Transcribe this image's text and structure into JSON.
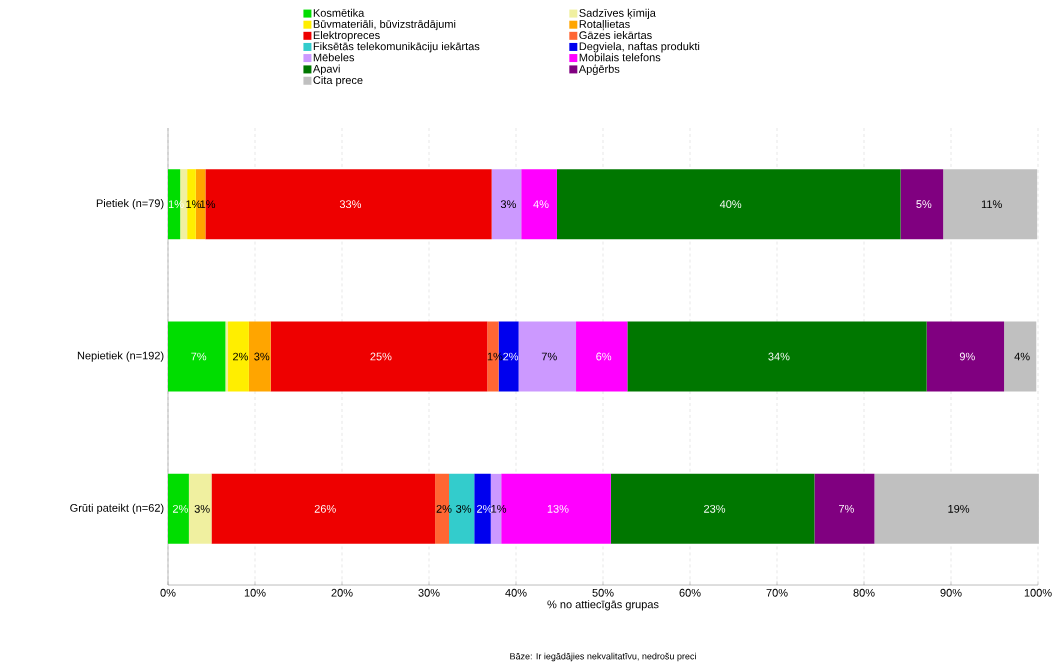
{
  "chart_data": {
    "type": "bar",
    "orientation": "horizontal",
    "stacked": true,
    "categories": [
      "Pietiek (n=79)",
      "Nepietiek (n=192)",
      "Grūti pateikt (n=62)"
    ],
    "xlabel": "% no attiecīgās grupas",
    "annotations": [
      "Bāze: Ir iegādājies nekvalitatīvu, nedrošu preci"
    ],
    "xlim": [
      0,
      100
    ],
    "xticks": [
      {
        "value": 0,
        "label": "0%"
      },
      {
        "value": 10,
        "label": "10%"
      },
      {
        "value": 20,
        "label": "20%"
      },
      {
        "value": 30,
        "label": "30%"
      },
      {
        "value": 40,
        "label": "40%"
      },
      {
        "value": 50,
        "label": "50%"
      },
      {
        "value": 60,
        "label": "60%"
      },
      {
        "value": 70,
        "label": "70%"
      },
      {
        "value": 80,
        "label": "80%"
      },
      {
        "value": 90,
        "label": "90%"
      },
      {
        "value": 100,
        "label": "100%"
      }
    ],
    "grid": "x",
    "legend": "top",
    "series": [
      {
        "name": "Kosmētika",
        "color": "#00dd00",
        "values": [
          1.4,
          6.6,
          2.4
        ],
        "value_labels": [
          "1%",
          "7%",
          "2%"
        ]
      },
      {
        "name": "Sadzīves ķīmija",
        "color": "#f0f0a0",
        "values": [
          0.8,
          0.3,
          2.6
        ],
        "value_labels": [
          null,
          null,
          "3%"
        ]
      },
      {
        "name": "Būvmateriāli, būvizstrādājumi",
        "color": "#ffee00",
        "values": [
          1.0,
          2.4,
          0
        ],
        "value_labels": [
          "1%",
          "2%",
          null
        ]
      },
      {
        "name": "Rotaļlietas",
        "color": "#ffa500",
        "values": [
          1.1,
          2.5,
          0
        ],
        "value_labels": [
          "1%",
          "3%",
          null
        ]
      },
      {
        "name": "Elektropreces",
        "color": "#ee0000",
        "values": [
          32.9,
          24.9,
          25.7
        ],
        "value_labels": [
          "33%",
          "25%",
          "26%"
        ]
      },
      {
        "name": "Gāzes iekārtas",
        "color": "#ff6633",
        "values": [
          0,
          1.3,
          1.6
        ],
        "value_labels": [
          null,
          "1%",
          "2%"
        ]
      },
      {
        "name": "Fiksētās telekomunikāciju iekārtas",
        "color": "#33cccc",
        "values": [
          0,
          0,
          2.9
        ],
        "value_labels": [
          null,
          null,
          "3%"
        ]
      },
      {
        "name": "Degviela, naftas produkti",
        "color": "#0000ee",
        "values": [
          0,
          2.3,
          1.9
        ],
        "value_labels": [
          null,
          "2%",
          "2%"
        ]
      },
      {
        "name": "Mēbeles",
        "color": "#cc99ff",
        "values": [
          3.4,
          6.6,
          1.2
        ],
        "value_labels": [
          "3%",
          "7%",
          "1%"
        ]
      },
      {
        "name": "Mobilais telefons",
        "color": "#ff00ff",
        "values": [
          4.1,
          5.9,
          12.6
        ],
        "value_labels": [
          "4%",
          "6%",
          "13%"
        ]
      },
      {
        "name": "Apavi",
        "color": "#007700",
        "values": [
          39.5,
          34.4,
          23.4
        ],
        "value_labels": [
          "40%",
          "34%",
          "23%"
        ]
      },
      {
        "name": "Apģērbs",
        "color": "#800080",
        "values": [
          4.9,
          8.9,
          6.9
        ],
        "value_labels": [
          "5%",
          "9%",
          "7%"
        ]
      },
      {
        "name": "Cita prece",
        "color": "#c0c0c0",
        "values": [
          10.8,
          3.7,
          18.9
        ],
        "value_labels": [
          "11%",
          "4%",
          "19%"
        ]
      }
    ]
  }
}
